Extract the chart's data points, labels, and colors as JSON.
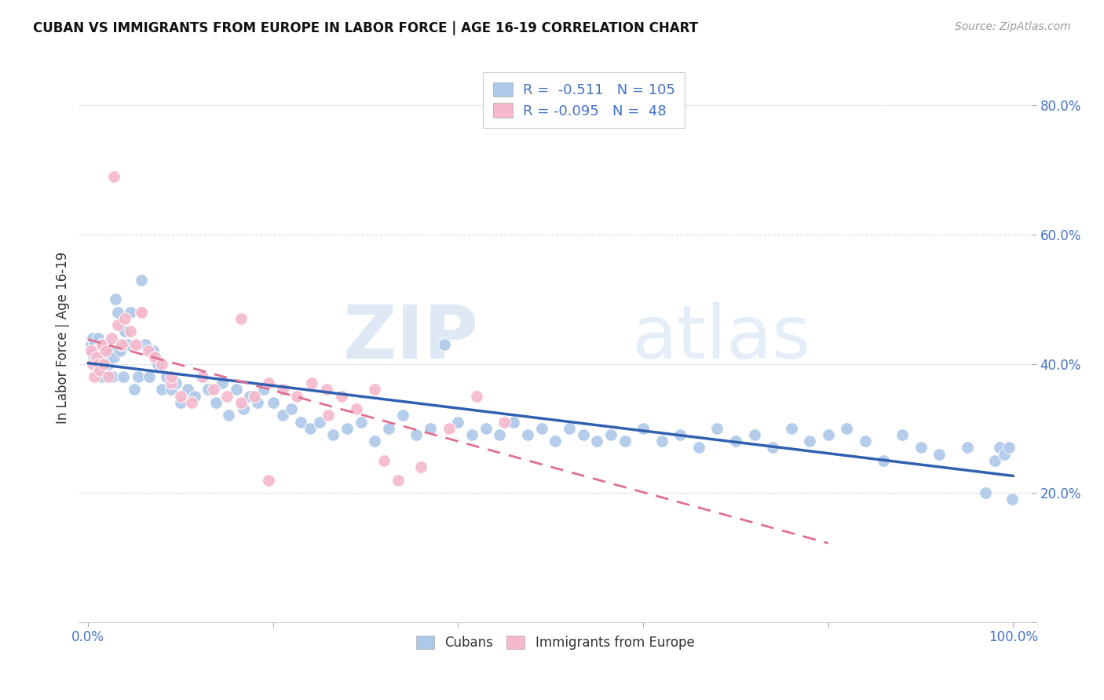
{
  "title": "CUBAN VS IMMIGRANTS FROM EUROPE IN LABOR FORCE | AGE 16-19 CORRELATION CHART",
  "source": "Source: ZipAtlas.com",
  "ylabel": "In Labor Force | Age 16-19",
  "cubans_R": "-0.511",
  "cubans_N": "105",
  "europe_R": "-0.095",
  "europe_N": "48",
  "blue_color": "#adc8e8",
  "pink_color": "#f5b8cc",
  "blue_line_color": "#3060b0",
  "pink_line_color": "#e07090",
  "text_color": "#4472c4",
  "background_color": "#ffffff",
  "watermark_zip": "ZIP",
  "watermark_atlas": "atlas",
  "cubans_x": [
    0.003,
    0.004,
    0.005,
    0.006,
    0.007,
    0.008,
    0.009,
    0.01,
    0.011,
    0.012,
    0.013,
    0.014,
    0.015,
    0.016,
    0.017,
    0.018,
    0.019,
    0.02,
    0.022,
    0.024,
    0.026,
    0.028,
    0.03,
    0.032,
    0.035,
    0.038,
    0.04,
    0.043,
    0.046,
    0.05,
    0.054,
    0.058,
    0.062,
    0.066,
    0.07,
    0.075,
    0.08,
    0.085,
    0.09,
    0.095,
    0.1,
    0.108,
    0.115,
    0.122,
    0.13,
    0.138,
    0.145,
    0.152,
    0.16,
    0.168,
    0.175,
    0.183,
    0.19,
    0.2,
    0.21,
    0.22,
    0.23,
    0.24,
    0.25,
    0.265,
    0.28,
    0.295,
    0.31,
    0.325,
    0.34,
    0.355,
    0.37,
    0.385,
    0.4,
    0.415,
    0.43,
    0.445,
    0.46,
    0.475,
    0.49,
    0.505,
    0.52,
    0.535,
    0.55,
    0.565,
    0.58,
    0.6,
    0.62,
    0.64,
    0.66,
    0.68,
    0.7,
    0.72,
    0.74,
    0.76,
    0.78,
    0.8,
    0.82,
    0.84,
    0.86,
    0.88,
    0.9,
    0.92,
    0.95,
    0.97,
    0.98,
    0.985,
    0.99,
    0.995,
    0.999
  ],
  "cubans_y": [
    0.43,
    0.42,
    0.44,
    0.41,
    0.43,
    0.42,
    0.4,
    0.41,
    0.44,
    0.42,
    0.39,
    0.41,
    0.38,
    0.43,
    0.4,
    0.42,
    0.41,
    0.43,
    0.4,
    0.42,
    0.38,
    0.41,
    0.5,
    0.48,
    0.42,
    0.38,
    0.45,
    0.43,
    0.48,
    0.36,
    0.38,
    0.53,
    0.43,
    0.38,
    0.42,
    0.4,
    0.36,
    0.38,
    0.36,
    0.37,
    0.34,
    0.36,
    0.35,
    0.38,
    0.36,
    0.34,
    0.37,
    0.32,
    0.36,
    0.33,
    0.35,
    0.34,
    0.36,
    0.34,
    0.32,
    0.33,
    0.31,
    0.3,
    0.31,
    0.29,
    0.3,
    0.31,
    0.28,
    0.3,
    0.32,
    0.29,
    0.3,
    0.43,
    0.31,
    0.29,
    0.3,
    0.29,
    0.31,
    0.29,
    0.3,
    0.28,
    0.3,
    0.29,
    0.28,
    0.29,
    0.28,
    0.3,
    0.28,
    0.29,
    0.27,
    0.3,
    0.28,
    0.29,
    0.27,
    0.3,
    0.28,
    0.29,
    0.3,
    0.28,
    0.25,
    0.29,
    0.27,
    0.26,
    0.27,
    0.2,
    0.25,
    0.27,
    0.26,
    0.27,
    0.19
  ],
  "europe_x": [
    0.003,
    0.005,
    0.007,
    0.009,
    0.011,
    0.013,
    0.015,
    0.017,
    0.019,
    0.022,
    0.025,
    0.028,
    0.032,
    0.036,
    0.04,
    0.046,
    0.052,
    0.058,
    0.065,
    0.072,
    0.08,
    0.09,
    0.1,
    0.112,
    0.124,
    0.136,
    0.15,
    0.165,
    0.18,
    0.195,
    0.21,
    0.226,
    0.242,
    0.258,
    0.274,
    0.29,
    0.31,
    0.335,
    0.36,
    0.39,
    0.42,
    0.45,
    0.165,
    0.09,
    0.058,
    0.32,
    0.26,
    0.195
  ],
  "europe_y": [
    0.42,
    0.4,
    0.38,
    0.41,
    0.4,
    0.39,
    0.43,
    0.4,
    0.42,
    0.38,
    0.44,
    0.69,
    0.46,
    0.43,
    0.47,
    0.45,
    0.43,
    0.48,
    0.42,
    0.41,
    0.4,
    0.37,
    0.35,
    0.34,
    0.38,
    0.36,
    0.35,
    0.34,
    0.35,
    0.37,
    0.36,
    0.35,
    0.37,
    0.36,
    0.35,
    0.33,
    0.36,
    0.22,
    0.24,
    0.3,
    0.35,
    0.31,
    0.47,
    0.38,
    0.48,
    0.25,
    0.32,
    0.22
  ],
  "xlim": [
    -0.01,
    1.02
  ],
  "ylim": [
    0.0,
    0.88
  ],
  "ytick_vals": [
    0.0,
    0.2,
    0.4,
    0.6,
    0.8
  ],
  "ytick_labels": [
    "",
    "20.0%",
    "40.0%",
    "60.0%",
    "80.0%"
  ],
  "xtick_vals": [
    0.0,
    0.2,
    0.4,
    0.6,
    0.8,
    1.0
  ],
  "xtick_labels": [
    "0.0%",
    "",
    "",
    "",
    "",
    "100.0%"
  ]
}
